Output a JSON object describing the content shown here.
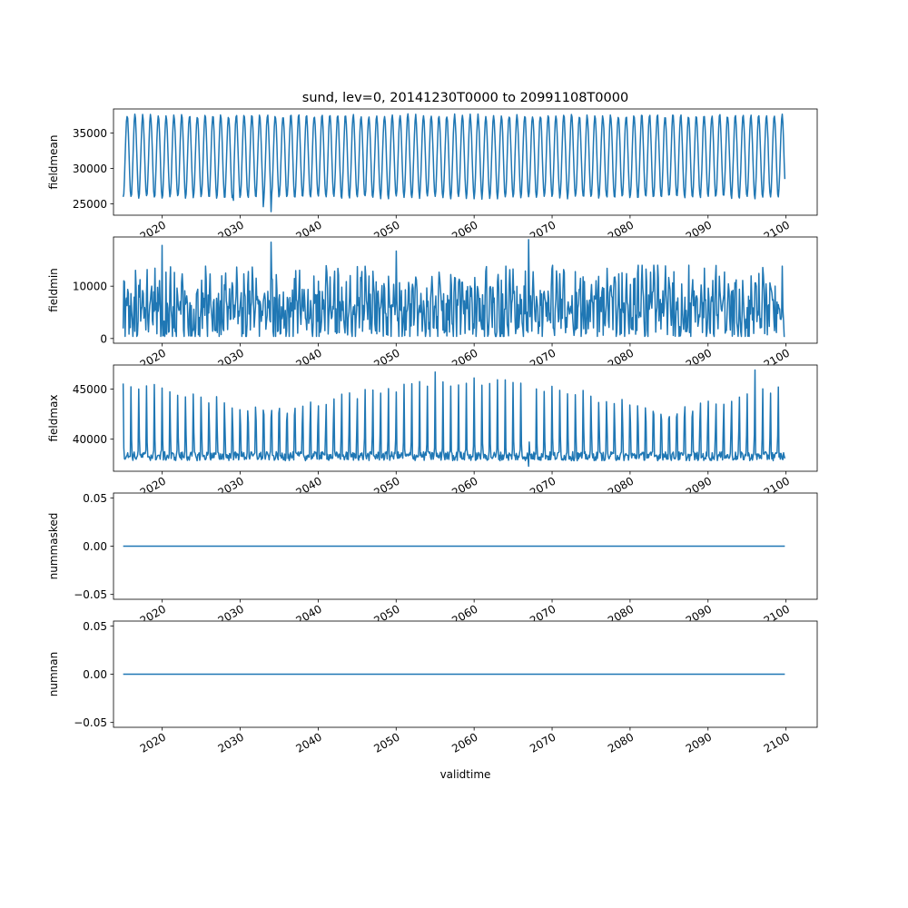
{
  "figure": {
    "title": "sund, lev=0, 20141230T0000 to 20991108T0000",
    "xlabel": "validtime"
  },
  "colors": {
    "line": "#1f77b4",
    "axes": "#000000",
    "background": "#ffffff"
  },
  "chart_data": [
    {
      "type": "line",
      "ylabel": "fieldmean",
      "yticks": [
        25000,
        30000,
        35000
      ],
      "ylim": [
        23400,
        38400
      ],
      "xticks": [
        "2020",
        "2030",
        "2040",
        "2050",
        "2060",
        "2070",
        "2080",
        "2090",
        "2100"
      ],
      "xlim": [
        2013.75,
        2104.0
      ],
      "x_range": [
        2014.99,
        2099.85
      ],
      "pattern": "seasonal",
      "peak": 37500,
      "trough": 25900,
      "peak_season": "summer",
      "notable_extremes": [
        {
          "x": 2034.0,
          "y": 23900
        },
        {
          "x": 2033.0,
          "y": 24600
        },
        {
          "x": 2029.1,
          "y": 25500
        }
      ],
      "grid": false
    },
    {
      "type": "line",
      "ylabel": "fieldmin",
      "yticks": [
        0,
        10000
      ],
      "ylim": [
        -900,
        19400
      ],
      "xticks": [
        "2020",
        "2030",
        "2040",
        "2050",
        "2060",
        "2070",
        "2080",
        "2090",
        "2100"
      ],
      "xlim": [
        2013.75,
        2104.0
      ],
      "x_range": [
        2014.99,
        2099.85
      ],
      "pattern": "noisy",
      "range_typical": [
        400,
        14000
      ],
      "notable_extremes": [
        {
          "x": 2067.0,
          "y": 18900
        },
        {
          "x": 2034.0,
          "y": 18400
        },
        {
          "x": 2020.0,
          "y": 17800
        },
        {
          "x": 2050.0,
          "y": 16700
        }
      ],
      "grid": false
    },
    {
      "type": "line",
      "ylabel": "fieldmax",
      "yticks": [
        40000,
        45000
      ],
      "ylim": [
        36800,
        47400
      ],
      "xticks": [
        "2020",
        "2030",
        "2040",
        "2050",
        "2060",
        "2070",
        "2080",
        "2090",
        "2100"
      ],
      "xlim": [
        2013.75,
        2104.0
      ],
      "x_range": [
        2014.99,
        2099.85
      ],
      "pattern": "spiky-winter",
      "peak": 45700,
      "baseline": 38300,
      "peak_season": "winter",
      "notable_extremes": [
        {
          "x": 2096.0,
          "y": 46900
        },
        {
          "x": 2055.0,
          "y": 46700
        },
        {
          "x": 2067.0,
          "y": 37300
        }
      ],
      "grid": false
    },
    {
      "type": "line",
      "ylabel": "nummasked",
      "yticks": [
        -0.05,
        0.0,
        0.05
      ],
      "ytick_labels": [
        "−0.05",
        "0.00",
        "0.05"
      ],
      "ylim": [
        -0.055,
        0.055
      ],
      "xticks": [
        "2020",
        "2030",
        "2040",
        "2050",
        "2060",
        "2070",
        "2080",
        "2090",
        "2100"
      ],
      "xlim": [
        2013.75,
        2104.0
      ],
      "x_range": [
        2014.99,
        2099.85
      ],
      "pattern": "constant",
      "value": 0,
      "grid": false
    },
    {
      "type": "line",
      "ylabel": "numnan",
      "yticks": [
        -0.05,
        0.0,
        0.05
      ],
      "ytick_labels": [
        "−0.05",
        "0.00",
        "0.05"
      ],
      "ylim": [
        -0.055,
        0.055
      ],
      "xticks": [
        "2020",
        "2030",
        "2040",
        "2050",
        "2060",
        "2070",
        "2080",
        "2090",
        "2100"
      ],
      "xlim": [
        2013.75,
        2104.0
      ],
      "x_range": [
        2014.99,
        2099.85
      ],
      "pattern": "constant",
      "value": 0,
      "grid": false
    }
  ]
}
